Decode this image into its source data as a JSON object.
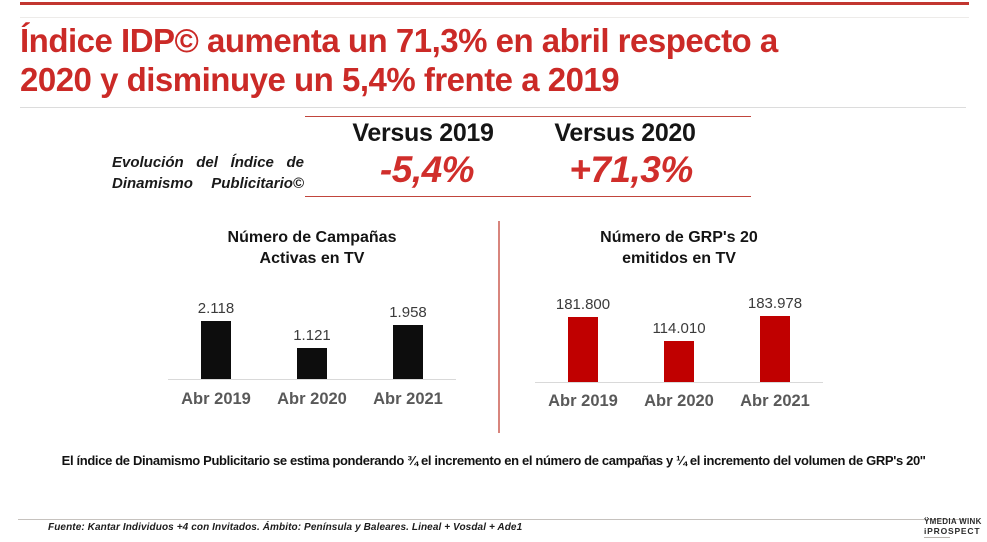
{
  "colors": {
    "accent_red": "#cb2a27",
    "bar_black": "#0d0d0d",
    "bar_red": "#c00000",
    "category_gray": "#595959"
  },
  "title": {
    "line1": "Índice IDP© aumenta un 71,3% en abril respecto a",
    "line2": "2020 y disminuye un 5,4% frente a 2019"
  },
  "evolution_label": {
    "line1": "Evolución del Índice de",
    "line2": "Dinamismo Publicitario©"
  },
  "versus": {
    "v2019": {
      "header": "Versus 2019",
      "value": "-5,4%"
    },
    "v2020": {
      "header": "Versus 2020",
      "value": "+71,3%"
    }
  },
  "chart_data": [
    {
      "type": "bar",
      "title": "Número de Campañas Activas en TV",
      "title_lines": [
        "Número de Campañas",
        "Activas en TV"
      ],
      "categories": [
        "Abr 2019",
        "Abr 2020",
        "Abr 2021"
      ],
      "values": [
        2118,
        1121,
        1958
      ],
      "value_labels": [
        "2.118",
        "1.121",
        "1.958"
      ],
      "bar_color": "#0d0d0d",
      "xlabel": "",
      "ylabel": "",
      "ylim": [
        0,
        2250
      ],
      "grid": false,
      "legend": false
    },
    {
      "type": "bar",
      "title": "Número de GRP's 20 emitidos en TV",
      "title_lines": [
        "Número de GRP's 20",
        "emitidos en TV"
      ],
      "categories": [
        "Abr 2019",
        "Abr 2020",
        "Abr 2021"
      ],
      "values": [
        181800,
        114010,
        183978
      ],
      "value_labels": [
        "181.800",
        "114.010",
        "183.978"
      ],
      "bar_color": "#c00000",
      "xlabel": "",
      "ylabel": "",
      "ylim": [
        0,
        190000
      ],
      "grid": false,
      "legend": false
    }
  ],
  "footnote": "El índice de Dinamismo Publicitario se estima ponderando ¾ el incremento en el número de campañas y ¼ el incremento del volumen de GRP's 20''",
  "source": "Fuente: Kantar Individuos +4 con Invitados. Ámbito: Península y Baleares. Lineal + Vosdal + Ade1",
  "logo": {
    "line1": "ŸMEDIA WINK",
    "line2": "iPROSPECT"
  }
}
